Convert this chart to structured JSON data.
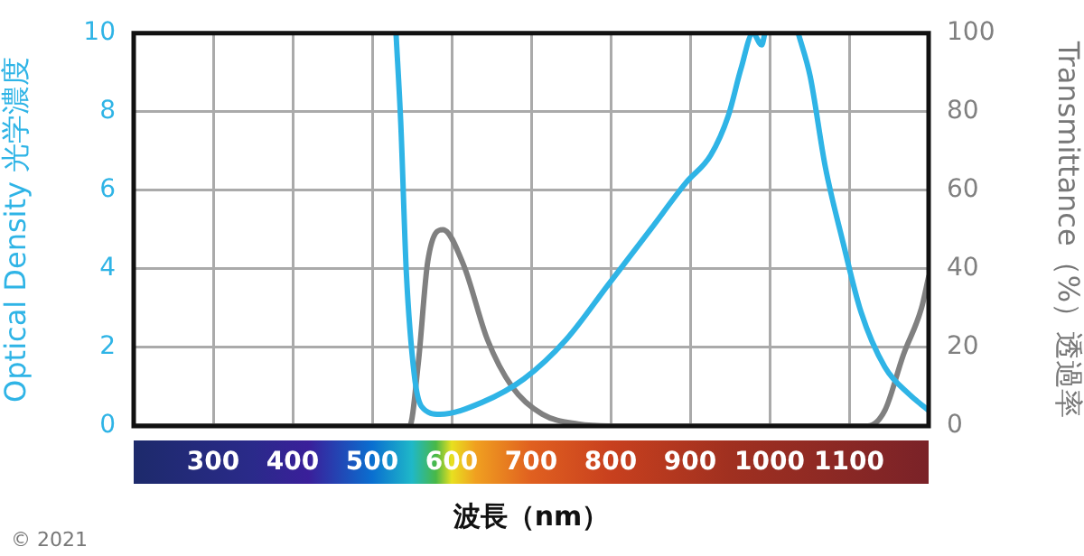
{
  "chart_data": {
    "type": "line",
    "xlabel": "波長（nm）",
    "ylabel": "Optical Density 光学濃度",
    "y2label": "Transmittance（%）透過率",
    "xlim": [
      200,
      1200
    ],
    "xticks": [
      {
        "value": 200,
        "label": null
      },
      300,
      400,
      500,
      600,
      700,
      800,
      900,
      1000,
      1100,
      {
        "value": 1200,
        "label": null
      }
    ],
    "ylim": [
      0,
      10
    ],
    "yticks": [
      0,
      2,
      4,
      6,
      8,
      10
    ],
    "y2lim": [
      0,
      100
    ],
    "y2ticks": [
      0,
      20,
      40,
      60,
      80,
      100
    ],
    "grid": true,
    "legend": false,
    "marker": "none",
    "line_style": "solid",
    "annotations": [
      "© 2021"
    ],
    "series": [
      {
        "color": "#2fb4e6",
        "x": [
          530,
          536,
          543,
          553,
          562,
          585,
          638,
          691,
          744,
          797,
          850,
          895,
          926,
          948,
          964,
          979,
          990,
          994,
          1015,
          1036,
          1051,
          1070,
          1092,
          1115,
          1145,
          1176,
          1200
        ],
        "values": [
          10,
          7.7,
          3.9,
          1.3,
          0.5,
          0.3,
          0.6,
          1.2,
          2.2,
          3.6,
          5,
          6.2,
          6.9,
          7.9,
          9.1,
          10,
          9.7,
          10,
          null,
          10,
          8.9,
          6.6,
          4.7,
          2.9,
          1.5,
          0.8,
          0.4
        ]
      },
      {
        "color": "#808080",
        "axis": "y2",
        "x": [
          200,
          547,
          558,
          570,
          589,
          615,
          645,
          676,
          714,
          759,
          800,
          1123,
          1145,
          1168,
          1191,
          1200
        ],
        "values": [
          0,
          0,
          16,
          42,
          50,
          41,
          22,
          10,
          3,
          0.5,
          0,
          0,
          4,
          18,
          30,
          38
        ]
      }
    ]
  }
}
